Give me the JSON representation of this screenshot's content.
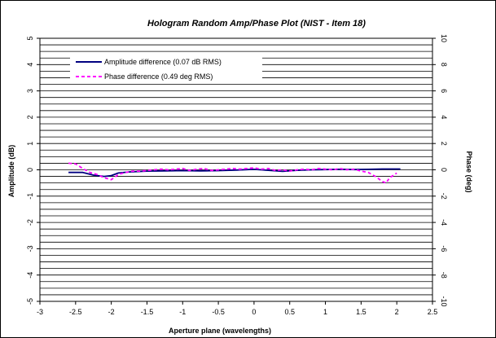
{
  "chart_data": {
    "type": "line",
    "title": "Hologram Random Amp/Phase Plot (NIST - Item 18)",
    "xlabel": "Aperture plane (wavelengths)",
    "ylabel": "Amplitude (dB)",
    "y2label": "Phase (deg)",
    "xlim": [
      -3,
      2.5
    ],
    "ylim": [
      -5,
      5
    ],
    "y2lim": [
      -10,
      10
    ],
    "x_ticks": [
      "-3",
      "-2.5",
      "-2",
      "-1.5",
      "-1",
      "-0.5",
      "0",
      "0.5",
      "1",
      "1.5",
      "2",
      "2.5"
    ],
    "y_ticks": [
      "-5",
      "-4",
      "-3",
      "-2",
      "-1",
      "0",
      "1",
      "2",
      "3",
      "4",
      "5"
    ],
    "y2_ticks": [
      "-10",
      "-8",
      "-6",
      "-4",
      "-2",
      "0",
      "2",
      "4",
      "6",
      "8",
      "10"
    ],
    "grid": "horizontal",
    "legend_position": "top-left",
    "series": [
      {
        "name": "Amplitude difference (0.07 dB RMS)",
        "axis": "left",
        "color": "#000080",
        "style": "solid",
        "x": [
          -2.6,
          -2.4,
          -2.25,
          -2.1,
          -2.0,
          -1.9,
          -1.75,
          -1.5,
          -1.25,
          -1.0,
          -0.75,
          -0.5,
          -0.25,
          0.0,
          0.2,
          0.4,
          0.6,
          0.8,
          1.0,
          1.2,
          1.4,
          1.6,
          1.8,
          2.05
        ],
        "y": [
          -0.1,
          -0.1,
          -0.2,
          -0.25,
          -0.22,
          -0.12,
          -0.08,
          -0.05,
          -0.04,
          -0.03,
          -0.04,
          -0.03,
          -0.01,
          0.02,
          -0.02,
          -0.06,
          -0.02,
          0.0,
          0.01,
          0.02,
          0.01,
          0.02,
          0.03,
          0.03
        ]
      },
      {
        "name": "Phase difference (0.49 deg RMS)",
        "axis": "right",
        "color": "#ff00ff",
        "style": "dashed",
        "x": [
          -2.6,
          -2.5,
          -2.4,
          -2.3,
          -2.2,
          -2.1,
          -2.0,
          -1.9,
          -1.8,
          -1.7,
          -1.6,
          -1.5,
          -1.4,
          -1.3,
          -1.2,
          -1.1,
          -1.0,
          -0.9,
          -0.8,
          -0.7,
          -0.6,
          -0.5,
          -0.4,
          -0.3,
          -0.2,
          -0.1,
          0.0,
          0.1,
          0.2,
          0.3,
          0.4,
          0.5,
          0.6,
          0.7,
          0.8,
          0.9,
          1.0,
          1.1,
          1.2,
          1.3,
          1.4,
          1.5,
          1.6,
          1.7,
          1.8,
          1.85,
          1.9,
          2.0
        ],
        "y": [
          0.5,
          0.45,
          0.1,
          -0.2,
          -0.35,
          -0.6,
          -0.75,
          -0.35,
          -0.2,
          -0.1,
          -0.1,
          -0.05,
          0.0,
          0.05,
          0.0,
          0.05,
          0.1,
          -0.05,
          0.05,
          0.1,
          -0.05,
          0.0,
          0.05,
          0.1,
          0.05,
          0.1,
          0.15,
          0.05,
          0.1,
          -0.05,
          0.0,
          -0.1,
          0.0,
          0.05,
          0.0,
          0.1,
          0.05,
          0.0,
          0.1,
          0.0,
          0.05,
          -0.1,
          -0.2,
          -0.5,
          -0.9,
          -1.0,
          -0.6,
          -0.25
        ]
      }
    ]
  }
}
